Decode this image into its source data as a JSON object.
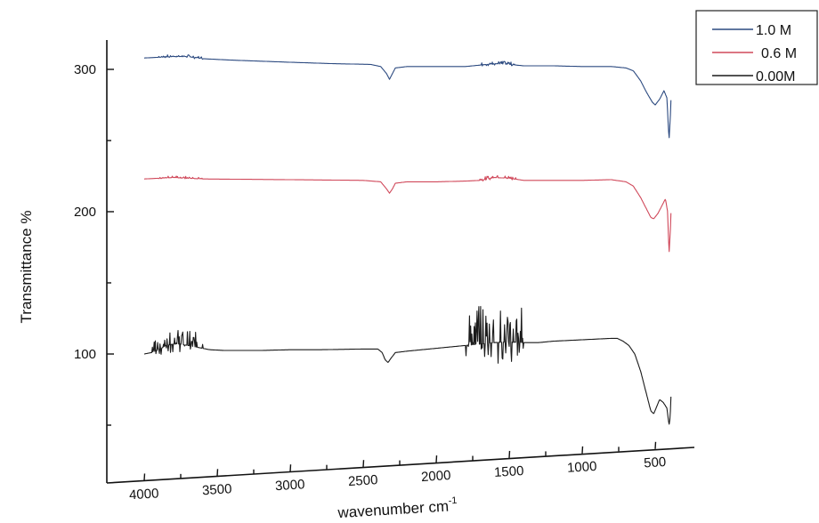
{
  "chart_data": {
    "type": "line",
    "title": "",
    "xlabel": "wavenumber cm",
    "xlabel_superscript": "-1",
    "ylabel": "Transmittance %",
    "x_reversed": true,
    "xlim": [
      4000,
      400
    ],
    "ylim": [
      40,
      320
    ],
    "x_ticks": [
      4000,
      3500,
      3000,
      2500,
      2000,
      1500,
      1000,
      500
    ],
    "y_ticks": [
      100,
      200,
      300
    ],
    "legend_position": "top-right",
    "legend_colors": {
      "1.0 M": "#2c4a80",
      "0.6 M": "#d0485a",
      "0.00M": "#1a1a1a"
    },
    "series": [
      {
        "name": "1.0 M",
        "color": "#2c4a80",
        "points": [
          [
            4000,
            308
          ],
          [
            3900,
            308.5
          ],
          [
            3800,
            309
          ],
          [
            3700,
            309
          ],
          [
            3600,
            307.5
          ],
          [
            3400,
            306.5
          ],
          [
            3000,
            305
          ],
          [
            2700,
            304
          ],
          [
            2450,
            303.5
          ],
          [
            2380,
            302
          ],
          [
            2340,
            297
          ],
          [
            2320,
            293
          ],
          [
            2300,
            297
          ],
          [
            2280,
            301
          ],
          [
            2200,
            302
          ],
          [
            2000,
            302
          ],
          [
            1800,
            302
          ],
          [
            1700,
            303
          ],
          [
            1600,
            304
          ],
          [
            1500,
            303.5
          ],
          [
            1400,
            302.5
          ],
          [
            1200,
            302.5
          ],
          [
            1000,
            302
          ],
          [
            800,
            302
          ],
          [
            700,
            301
          ],
          [
            650,
            299
          ],
          [
            600,
            292
          ],
          [
            560,
            284
          ],
          [
            520,
            277
          ],
          [
            500,
            275
          ],
          [
            470,
            279
          ],
          [
            440,
            285
          ],
          [
            420,
            280
          ],
          [
            405,
            250
          ],
          [
            395,
            270
          ],
          [
            390,
            284
          ]
        ]
      },
      {
        "name": "0.6 M",
        "color": "#d0485a",
        "points": [
          [
            4000,
            223
          ],
          [
            3900,
            223.5
          ],
          [
            3800,
            224
          ],
          [
            3700,
            223.5
          ],
          [
            3600,
            223
          ],
          [
            3000,
            222.5
          ],
          [
            2500,
            222
          ],
          [
            2380,
            221
          ],
          [
            2340,
            216
          ],
          [
            2320,
            213
          ],
          [
            2300,
            216
          ],
          [
            2280,
            220
          ],
          [
            2200,
            221
          ],
          [
            2000,
            221
          ],
          [
            1800,
            221.5
          ],
          [
            1700,
            222
          ],
          [
            1600,
            224
          ],
          [
            1500,
            223.5
          ],
          [
            1400,
            222
          ],
          [
            1200,
            222
          ],
          [
            1000,
            222
          ],
          [
            800,
            222.5
          ],
          [
            700,
            221
          ],
          [
            650,
            218
          ],
          [
            600,
            210
          ],
          [
            560,
            202
          ],
          [
            530,
            196
          ],
          [
            510,
            195
          ],
          [
            480,
            199
          ],
          [
            450,
            205
          ],
          [
            430,
            209
          ],
          [
            415,
            200
          ],
          [
            405,
            170
          ],
          [
            395,
            190
          ],
          [
            390,
            205
          ]
        ]
      },
      {
        "name": "0.00M",
        "color": "#1a1a1a",
        "points": [
          [
            4000,
            100
          ],
          [
            3950,
            101
          ],
          [
            3900,
            103
          ],
          [
            3850,
            106
          ],
          [
            3800,
            107
          ],
          [
            3750,
            107
          ],
          [
            3700,
            106
          ],
          [
            3650,
            105
          ],
          [
            3600,
            104
          ],
          [
            3550,
            103
          ],
          [
            3450,
            102.5
          ],
          [
            3200,
            102.5
          ],
          [
            3000,
            103
          ],
          [
            2800,
            103
          ],
          [
            2500,
            103.5
          ],
          [
            2400,
            103.5
          ],
          [
            2370,
            101
          ],
          [
            2350,
            96
          ],
          [
            2330,
            94
          ],
          [
            2310,
            97
          ],
          [
            2280,
            101
          ],
          [
            2200,
            102
          ],
          [
            2100,
            103
          ],
          [
            2000,
            104
          ],
          [
            1900,
            105
          ],
          [
            1800,
            106
          ],
          [
            1700,
            107
          ],
          [
            1600,
            108
          ],
          [
            1500,
            108.5
          ],
          [
            1400,
            108
          ],
          [
            1300,
            108
          ],
          [
            1200,
            109
          ],
          [
            1100,
            109.5
          ],
          [
            1000,
            110
          ],
          [
            900,
            110.5
          ],
          [
            800,
            111
          ],
          [
            760,
            111
          ],
          [
            720,
            109
          ],
          [
            680,
            106
          ],
          [
            640,
            100
          ],
          [
            600,
            88
          ],
          [
            560,
            72
          ],
          [
            530,
            60
          ],
          [
            510,
            58
          ],
          [
            490,
            63
          ],
          [
            470,
            68
          ],
          [
            445,
            66
          ],
          [
            420,
            62
          ],
          [
            405,
            50
          ],
          [
            398,
            55
          ],
          [
            392,
            70
          ]
        ]
      }
    ],
    "noise_bands": [
      {
        "series": "1.0 M",
        "from": 3900,
        "to": 3600,
        "amp": 2.2
      },
      {
        "series": "1.0 M",
        "from": 1700,
        "to": 1450,
        "amp": 3.5
      },
      {
        "series": "0.6 M",
        "from": 3900,
        "to": 3600,
        "amp": 2.0
      },
      {
        "series": "0.6 M",
        "from": 1700,
        "to": 1450,
        "amp": 3.0
      },
      {
        "series": "0.00M",
        "from": 3950,
        "to": 3600,
        "amp": 16
      },
      {
        "series": "0.00M",
        "from": 1800,
        "to": 1400,
        "amp": 42
      }
    ]
  }
}
